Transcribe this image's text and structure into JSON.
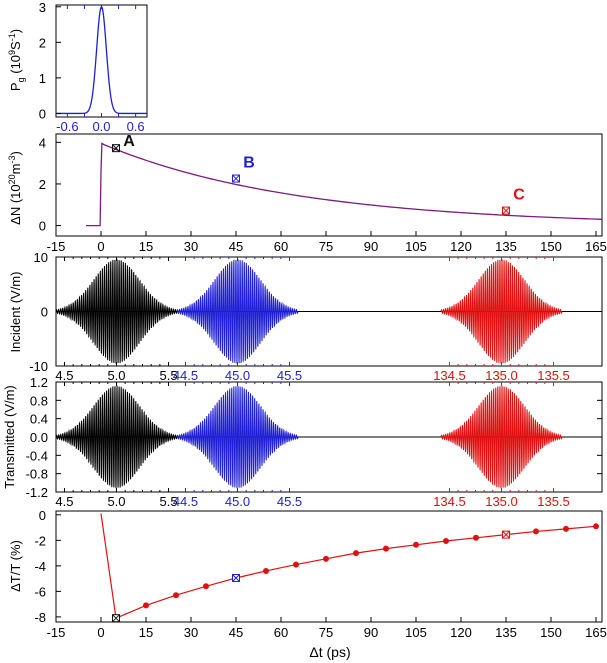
{
  "chart_data": [
    {
      "type": "line",
      "id": "pump",
      "ylabel": "P",
      "ylabel_sub": "g",
      "ylabel_rest": " (10",
      "ylabel_sup": "9",
      "ylabel_tail": "S",
      "ylabel_sup2": "-1",
      "ylabel_end": ")",
      "xlim": [
        -0.8,
        0.8
      ],
      "ylim": [
        -0.1,
        3.05
      ],
      "xticks": [
        -0.6,
        -0.3,
        0.0,
        0.3,
        0.6
      ],
      "xticklabels": [
        "-0.6",
        "0.0",
        "0.6"
      ],
      "yticks": [
        0,
        1,
        2,
        3
      ],
      "yticklabels": [
        "0",
        "1",
        "2",
        "3"
      ],
      "color": "#1f1fd6",
      "series": [
        {
          "peak": 3.0,
          "sigma": 0.085,
          "center": 0.0
        }
      ]
    },
    {
      "type": "line",
      "id": "carrier",
      "ylabel": "ΔN (10",
      "ylabel_sup": "20",
      "ylabel_rest": "m",
      "ylabel_sup2": "-3",
      "ylabel_end": ")",
      "xlim": [
        -15,
        167
      ],
      "ylim": [
        -0.5,
        4.4
      ],
      "xticks": [
        -15,
        0,
        15,
        30,
        45,
        60,
        75,
        90,
        105,
        120,
        135,
        150,
        165
      ],
      "xticklabels": [
        "-15",
        "0",
        "15",
        "30",
        "45",
        "60",
        "75",
        "90",
        "105",
        "120",
        "135",
        "150",
        "165"
      ],
      "yticks": [
        0,
        2,
        4
      ],
      "yticklabels": [
        "0",
        "2",
        "4"
      ],
      "color": "#7b1c7b",
      "points": [
        {
          "label": "A",
          "x": 5,
          "y": 3.72,
          "color": "#111111"
        },
        {
          "label": "B",
          "x": 45,
          "y": 2.26,
          "color": "#1f1fd6"
        },
        {
          "label": "C",
          "x": 135,
          "y": 0.72,
          "color": "#e01010"
        }
      ],
      "series": [
        {
          "peak": 3.95,
          "tau": 65,
          "end_value": 0.48
        }
      ]
    },
    {
      "type": "line",
      "id": "incident",
      "ylabel": "Incident (V/m)",
      "ylim": [
        -10,
        10
      ],
      "yticks": [
        -10,
        0,
        10
      ],
      "yticklabels": [
        "-10",
        "0",
        "10"
      ],
      "panels": [
        {
          "color": "#000000",
          "xticklabels": [
            "4.5",
            "5.0",
            "5.5"
          ]
        },
        {
          "color": "#1f1fd6",
          "xticklabels": [
            "44.5",
            "45.0",
            "45.5"
          ]
        },
        {
          "color": "#e01010",
          "xticklabels": [
            "134.5",
            "135.0",
            "135.5"
          ]
        }
      ],
      "amplitude": 9.6
    },
    {
      "type": "line",
      "id": "transmitted",
      "ylabel": "Transmitted (V/m)",
      "ylim": [
        -1.2,
        1.2
      ],
      "yticks": [
        -1.2,
        -0.8,
        -0.4,
        0.0,
        0.4,
        0.8,
        1.2
      ],
      "yticklabels": [
        "-1.2",
        "-0.8",
        "-0.4",
        "0.0",
        "0.4",
        "0.8",
        "1.2"
      ],
      "panels": [
        {
          "color": "#000000",
          "xticklabels": [
            "4.5",
            "5.0",
            "5.5"
          ]
        },
        {
          "color": "#1f1fd6",
          "xticklabels": [
            "44.5",
            "45.0",
            "45.5"
          ]
        },
        {
          "color": "#e01010",
          "xticklabels": [
            "134.5",
            "135.0",
            "135.5"
          ]
        }
      ],
      "amplitude": 1.12
    },
    {
      "type": "line",
      "id": "transmission",
      "ylabel": "ΔT/T (%)",
      "xlabel": "Δt (ps)",
      "xlim": [
        -15,
        167
      ],
      "ylim": [
        -8.4,
        0.3
      ],
      "xticks": [
        -15,
        0,
        15,
        30,
        45,
        60,
        75,
        90,
        105,
        120,
        135,
        150,
        165
      ],
      "xticklabels": [
        "-15",
        "0",
        "15",
        "30",
        "45",
        "60",
        "75",
        "90",
        "105",
        "120",
        "135",
        "150",
        "165"
      ],
      "yticks": [
        0,
        -2,
        -4,
        -6,
        -8
      ],
      "yticklabels": [
        "0",
        "-2",
        "-4",
        "-6",
        "-8"
      ],
      "color": "#e01010",
      "series": [
        {
          "x": [
            0,
            5,
            15,
            25,
            35,
            45,
            55,
            65,
            75,
            85,
            95,
            105,
            115,
            125,
            135,
            145,
            155,
            165
          ],
          "y": [
            0.1,
            -8.1,
            -7.1,
            -6.3,
            -5.6,
            -4.95,
            -4.4,
            -3.9,
            -3.45,
            -3.0,
            -2.65,
            -2.35,
            -2.05,
            -1.8,
            -1.55,
            -1.3,
            -1.1,
            -0.9
          ]
        }
      ],
      "marked": [
        {
          "x": 5,
          "y": -8.1,
          "color": "#111111"
        },
        {
          "x": 45,
          "y": -4.95,
          "color": "#1f1fd6"
        },
        {
          "x": 135,
          "y": -1.55,
          "color": "#e01010"
        }
      ]
    }
  ]
}
